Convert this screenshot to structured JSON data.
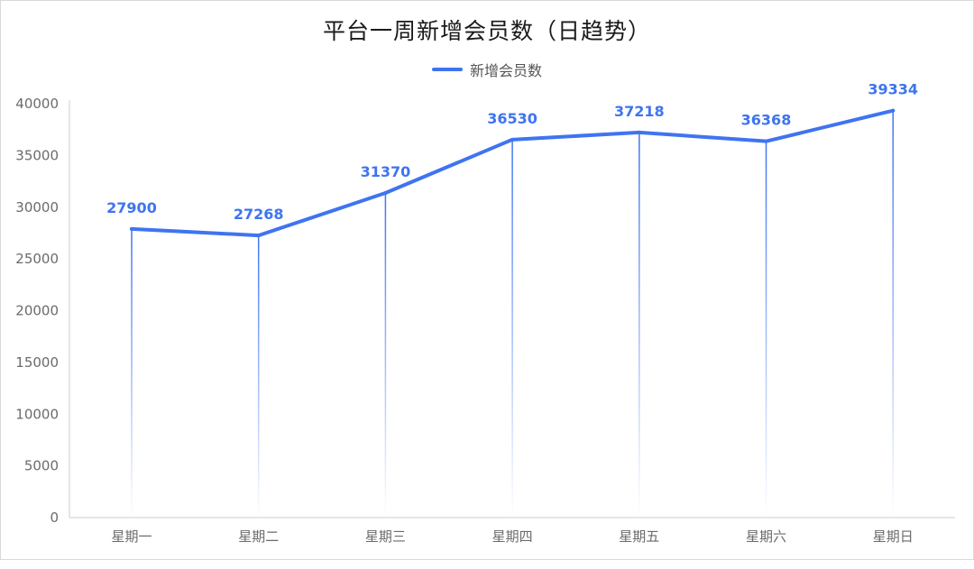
{
  "chart_data": {
    "type": "line",
    "title": "平台一周新增会员数（日趋势）",
    "categories": [
      "星期一",
      "星期二",
      "星期三",
      "星期四",
      "星期五",
      "星期六",
      "星期日"
    ],
    "series": [
      {
        "name": "新增会员数",
        "values": [
          27900,
          27268,
          31370,
          36530,
          37218,
          36368,
          39334
        ]
      }
    ],
    "ylim": [
      0,
      40000
    ],
    "yticks": [
      0,
      5000,
      10000,
      15000,
      20000,
      25000,
      30000,
      35000,
      40000
    ],
    "xlabel": "",
    "ylabel": "",
    "legend_position": "top-center",
    "data_labels": true,
    "drop_lines": true,
    "grid": false,
    "colors": {
      "series": "#3f74f0",
      "axis": "#cccccc",
      "text": "#6b6b6b"
    }
  }
}
